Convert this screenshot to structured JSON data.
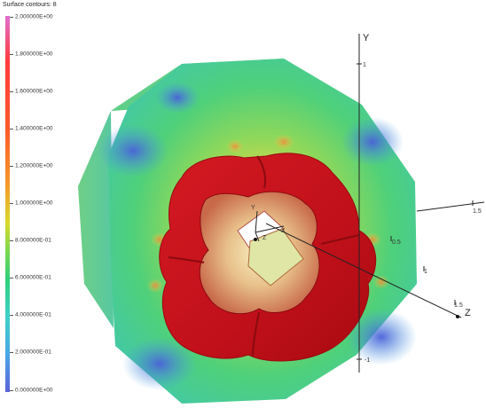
{
  "legend": {
    "title": "Surface contours: 8",
    "labels": [
      "2.000000E+00",
      "1.800000E+00",
      "1.600000E+00",
      "1.400000E+00",
      "1.200000E+00",
      "1.000000E+00",
      "8.000000E-01",
      "6.000000E-01",
      "4.000000E-01",
      "2.000000E-01",
      "0.000000E+00"
    ]
  },
  "axes": {
    "y_letter": "Y",
    "z_letter": "Z",
    "y_tick_1": "1",
    "y_tick_neg1": "-1",
    "z_tick_05": "0.5",
    "z_tick_1": "1",
    "z_tick_15": "1.5",
    "x_tick_15": "1.5",
    "inner_y": "Y",
    "inner_z": "Z",
    "inner_x": "X"
  },
  "colors": {
    "solid_red": "#c8101a",
    "green_surface": "#4fd07a",
    "blue_spot": "#4a78e0"
  }
}
